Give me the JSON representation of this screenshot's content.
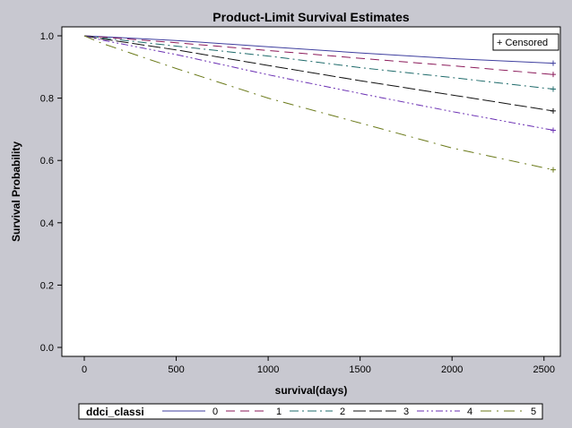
{
  "chart_data": {
    "type": "line",
    "title": "Product-Limit Survival Estimates",
    "xlabel": "survival(days)",
    "ylabel": "Survival Probability",
    "xlim": [
      0,
      2550
    ],
    "ylim": [
      0,
      1
    ],
    "xticks": [
      0,
      500,
      1000,
      1500,
      2000,
      2500
    ],
    "yticks": [
      0.0,
      0.2,
      0.4,
      0.6,
      0.8,
      1.0
    ],
    "xtick_labels": [
      "0",
      "500",
      "1000",
      "1500",
      "2000",
      "2500"
    ],
    "ytick_labels": [
      "0.0",
      "0.2",
      "0.4",
      "0.6",
      "0.8",
      "1.0"
    ],
    "censor_legend": "+ Censored",
    "legend_title": "ddci_classi",
    "legend_position": "bottom",
    "grid": false,
    "series": [
      {
        "name": "0",
        "color": "#3f3f9f",
        "dash": "",
        "x": [
          0,
          100,
          500,
          1000,
          1500,
          2000,
          2550
        ],
        "y": [
          1.0,
          0.997,
          0.985,
          0.965,
          0.945,
          0.927,
          0.912
        ]
      },
      {
        "name": "1",
        "color": "#8b1a5a",
        "dash": "10,6",
        "x": [
          0,
          100,
          500,
          1000,
          1500,
          2000,
          2550
        ],
        "y": [
          1.0,
          0.996,
          0.978,
          0.953,
          0.928,
          0.904,
          0.876
        ]
      },
      {
        "name": "2",
        "color": "#1f6b6b",
        "dash": "10,4,2,4",
        "x": [
          0,
          100,
          500,
          1000,
          1500,
          2000,
          2550
        ],
        "y": [
          1.0,
          0.993,
          0.967,
          0.935,
          0.898,
          0.866,
          0.829
        ]
      },
      {
        "name": "3",
        "color": "#111111",
        "dash": "14,4",
        "x": [
          0,
          100,
          500,
          1000,
          1500,
          2000,
          2550
        ],
        "y": [
          1.0,
          0.99,
          0.955,
          0.905,
          0.856,
          0.81,
          0.759
        ]
      },
      {
        "name": "4",
        "color": "#6a2fb3",
        "dash": "8,3,2,3,2,3",
        "x": [
          0,
          100,
          500,
          1000,
          1500,
          2000,
          2550
        ],
        "y": [
          1.0,
          0.986,
          0.94,
          0.875,
          0.815,
          0.757,
          0.697
        ]
      },
      {
        "name": "5",
        "color": "#6b7a1a",
        "dash": "12,6,2,6",
        "x": [
          0,
          100,
          500,
          1000,
          1500,
          2000,
          2550
        ],
        "y": [
          1.0,
          0.975,
          0.895,
          0.8,
          0.72,
          0.64,
          0.57
        ]
      }
    ]
  }
}
